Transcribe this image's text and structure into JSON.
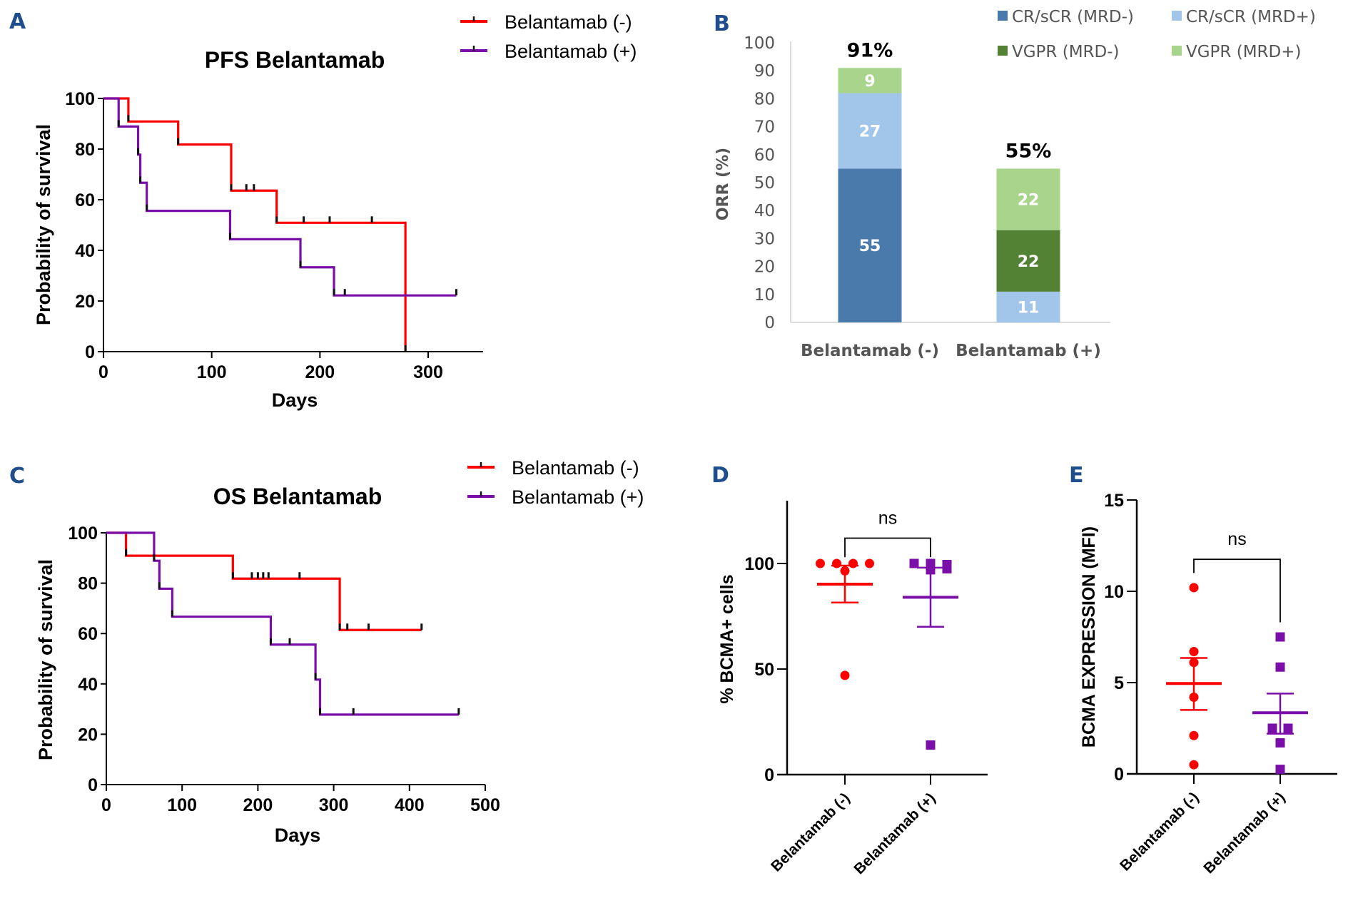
{
  "chart_data": [
    {
      "id": "A",
      "type": "line",
      "subtype": "kaplan-meier",
      "panel_letter": "A",
      "title": "PFS Belantamab",
      "xlabel": "Days",
      "ylabel": "Probability of survival",
      "xlim": [
        0,
        350
      ],
      "ylim": [
        0,
        100
      ],
      "xticks": [
        0,
        100,
        200,
        300
      ],
      "yticks": [
        0,
        20,
        40,
        60,
        80,
        100
      ],
      "legend_position": "top-right",
      "series": [
        {
          "name": "Belantamab (-)",
          "color": "#ff0000",
          "steps": [
            [
              0,
              100
            ],
            [
              23,
              90.9
            ],
            [
              69,
              81.8
            ],
            [
              118,
              63.6
            ],
            [
              160,
              50.9
            ],
            [
              279,
              0
            ]
          ],
          "end_x": 279,
          "censors": [
            [
              132,
              63.6
            ],
            [
              139,
              63.6
            ],
            [
              185,
              50.9
            ],
            [
              209,
              50.9
            ],
            [
              248,
              50.9
            ]
          ]
        },
        {
          "name": "Belantamab (+)",
          "color": "#7a0ea8",
          "steps": [
            [
              0,
              100
            ],
            [
              14,
              88.9
            ],
            [
              32,
              77.8
            ],
            [
              34,
              66.7
            ],
            [
              40,
              55.6
            ],
            [
              117,
              44.4
            ],
            [
              182,
              33.3
            ],
            [
              213,
              22.2
            ]
          ],
          "end_x": 326,
          "censors": [
            [
              223,
              22.2
            ],
            [
              326,
              22.2
            ]
          ]
        }
      ]
    },
    {
      "id": "B",
      "type": "bar",
      "subtype": "stacked",
      "panel_letter": "B",
      "title": "",
      "xlabel": "",
      "ylabel": "ORR (%)",
      "ylim": [
        0,
        100
      ],
      "yticks": [
        0,
        10,
        20,
        30,
        40,
        50,
        60,
        70,
        80,
        90,
        100
      ],
      "categories": [
        "Belantamab (-)",
        "Belantamab (+)"
      ],
      "totals_labels": [
        "91%",
        "55%"
      ],
      "legend_position": "top-right",
      "series": [
        {
          "name": "CR/sCR (MRD-)",
          "color": "#4a7aab",
          "values": [
            55,
            0
          ]
        },
        {
          "name": "CR/sCR (MRD+)",
          "color": "#a2c6ea",
          "values": [
            27,
            11
          ]
        },
        {
          "name": "VGPR (MRD-)",
          "color": "#548235",
          "values": [
            0,
            22
          ]
        },
        {
          "name": "VGPR (MRD+)",
          "color": "#a8d48c",
          "values": [
            9,
            22
          ]
        }
      ]
    },
    {
      "id": "C",
      "type": "line",
      "subtype": "kaplan-meier",
      "panel_letter": "C",
      "title": "OS Belantamab",
      "xlabel": "Days",
      "ylabel": "Probability of survival",
      "xlim": [
        0,
        500
      ],
      "ylim": [
        0,
        100
      ],
      "xticks": [
        0,
        100,
        200,
        300,
        400,
        500
      ],
      "yticks": [
        0,
        20,
        40,
        60,
        80,
        100
      ],
      "legend_position": "top-right",
      "series": [
        {
          "name": "Belantamab (-)",
          "color": "#ff0000",
          "steps": [
            [
              0,
              100
            ],
            [
              26,
              90.9
            ],
            [
              167,
              81.8
            ],
            [
              308,
              61.4
            ]
          ],
          "end_x": 416,
          "censors": [
            [
              192,
              81.8
            ],
            [
              200,
              81.8
            ],
            [
              207,
              81.8
            ],
            [
              214,
              81.8
            ],
            [
              255,
              81.8
            ],
            [
              318,
              61.4
            ],
            [
              346,
              61.4
            ],
            [
              416,
              61.4
            ]
          ]
        },
        {
          "name": "Belantamab (+)",
          "color": "#7a0ea8",
          "steps": [
            [
              0,
              100
            ],
            [
              63,
              88.9
            ],
            [
              70,
              77.8
            ],
            [
              87,
              66.7
            ],
            [
              217,
              55.6
            ],
            [
              276,
              41.7
            ],
            [
              282,
              27.8
            ]
          ],
          "end_x": 465,
          "censors": [
            [
              242,
              55.6
            ],
            [
              326,
              27.8
            ],
            [
              465,
              27.8
            ]
          ]
        }
      ]
    },
    {
      "id": "D",
      "type": "scatter",
      "subtype": "dot-plot-mean-sem",
      "panel_letter": "D",
      "title": "",
      "xlabel": "",
      "ylabel": "% BCMA+ cells",
      "ylim": [
        0,
        130
      ],
      "yticks": [
        0,
        50,
        100
      ],
      "categories": [
        "Belantamab (-)",
        "Belantamab (+)"
      ],
      "significance": {
        "label": "ns",
        "bracket_y": 112,
        "left_leg_y": 103,
        "right_leg_y": 103
      },
      "groups": [
        {
          "name": "Belantamab (-)",
          "color": "#ff0000",
          "marker": "circle",
          "mean": 90.2,
          "sem_upper": 99,
          "sem_lower": 81.5,
          "points": [
            100,
            100,
            100,
            100,
            96.5,
            47
          ],
          "jitter": [
            -1.5,
            -0.5,
            0.5,
            1.5,
            0,
            0
          ]
        },
        {
          "name": "Belantamab (+)",
          "color": "#7a0ea8",
          "marker": "square",
          "mean": 84,
          "sem_upper": 98,
          "sem_lower": 70,
          "points": [
            100,
            100,
            97,
            99.5,
            97.5,
            14
          ],
          "jitter": [
            -1,
            0,
            0,
            1,
            1,
            0
          ]
        }
      ]
    },
    {
      "id": "E",
      "type": "scatter",
      "subtype": "dot-plot-mean-sem",
      "panel_letter": "E",
      "title": "",
      "xlabel": "",
      "ylabel": "BCMA EXPRESSION (MFI)",
      "ylim": [
        0,
        15
      ],
      "yticks": [
        0,
        5,
        10,
        15
      ],
      "categories": [
        "Belantamab (-)",
        "Belantamab (+)"
      ],
      "significance": {
        "label": "ns",
        "bracket_y": 11.75,
        "left_leg_y": 11.0,
        "right_leg_y": 8.3
      },
      "groups": [
        {
          "name": "Belantamab (-)",
          "color": "#ff0000",
          "marker": "circle",
          "mean": 4.95,
          "sem_upper": 6.35,
          "sem_lower": 3.5,
          "points": [
            10.2,
            6.7,
            6.1,
            4.2,
            2.1,
            0.5
          ],
          "jitter": [
            0,
            0,
            0,
            0,
            0,
            0
          ]
        },
        {
          "name": "Belantamab (+)",
          "color": "#7a0ea8",
          "marker": "square",
          "mean": 3.35,
          "sem_upper": 4.4,
          "sem_lower": 2.2,
          "points": [
            7.5,
            5.85,
            2.5,
            2.5,
            1.7,
            0.25
          ],
          "jitter": [
            0,
            0,
            -1,
            1,
            0,
            0
          ]
        }
      ]
    }
  ]
}
